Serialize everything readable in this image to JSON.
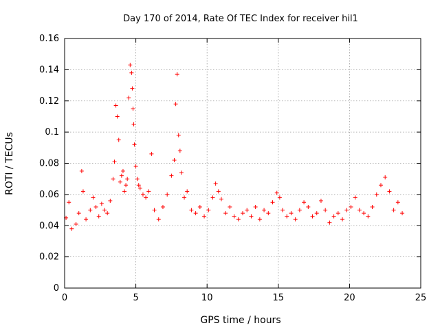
{
  "chart_data": {
    "type": "scatter",
    "title": "Day 170 of 2014, Rate Of TEC Index for receiver hil1",
    "xlabel": "GPS time / hours",
    "ylabel": "ROTI / TECUs",
    "xlim": [
      0,
      25
    ],
    "ylim": [
      0,
      0.16
    ],
    "xticks": [
      0,
      5,
      10,
      15,
      20,
      25
    ],
    "xtick_labels": [
      "0",
      "5",
      "10",
      "15",
      "20",
      "25"
    ],
    "yticks": [
      0,
      0.02,
      0.04,
      0.06,
      0.08,
      0.1,
      0.12,
      0.14,
      0.16
    ],
    "ytick_labels": [
      "0",
      "0.02",
      "0.04",
      "0.06",
      "0.08",
      "0.1",
      "0.12",
      "0.14",
      "0.16"
    ],
    "grid": true,
    "marker": "+",
    "color": "#ff0000",
    "series": [
      {
        "name": "ROTI",
        "x": [
          0.1,
          0.3,
          0.5,
          0.8,
          1.0,
          1.2,
          1.3,
          1.5,
          1.8,
          2.0,
          2.2,
          2.4,
          2.6,
          2.8,
          3.0,
          3.2,
          3.4,
          3.5,
          3.6,
          3.7,
          3.8,
          3.9,
          4.0,
          4.1,
          4.2,
          4.3,
          4.4,
          4.5,
          4.6,
          4.7,
          4.75,
          4.8,
          4.85,
          4.9,
          5.0,
          5.1,
          5.2,
          5.3,
          5.5,
          5.7,
          5.9,
          6.1,
          6.3,
          6.6,
          6.9,
          7.2,
          7.5,
          7.7,
          7.8,
          7.9,
          8.0,
          8.1,
          8.2,
          8.4,
          8.6,
          8.9,
          9.2,
          9.5,
          9.8,
          10.1,
          10.4,
          10.6,
          10.8,
          11.0,
          11.3,
          11.6,
          11.9,
          12.2,
          12.5,
          12.8,
          13.1,
          13.4,
          13.7,
          14.0,
          14.3,
          14.6,
          14.9,
          15.1,
          15.3,
          15.6,
          15.9,
          16.2,
          16.5,
          16.8,
          17.1,
          17.4,
          17.7,
          18.0,
          18.3,
          18.6,
          18.9,
          19.2,
          19.5,
          19.8,
          20.1,
          20.4,
          20.7,
          21.0,
          21.3,
          21.6,
          21.9,
          22.2,
          22.5,
          22.8,
          23.1,
          23.4,
          23.7
        ],
        "y": [
          0.045,
          0.055,
          0.038,
          0.041,
          0.048,
          0.075,
          0.062,
          0.044,
          0.05,
          0.058,
          0.052,
          0.046,
          0.054,
          0.05,
          0.048,
          0.056,
          0.07,
          0.081,
          0.117,
          0.11,
          0.095,
          0.068,
          0.072,
          0.075,
          0.062,
          0.066,
          0.07,
          0.122,
          0.143,
          0.138,
          0.128,
          0.115,
          0.105,
          0.092,
          0.078,
          0.07,
          0.066,
          0.064,
          0.06,
          0.058,
          0.062,
          0.086,
          0.05,
          0.044,
          0.052,
          0.06,
          0.072,
          0.082,
          0.118,
          0.137,
          0.098,
          0.088,
          0.074,
          0.058,
          0.062,
          0.05,
          0.048,
          0.052,
          0.046,
          0.05,
          0.058,
          0.067,
          0.062,
          0.057,
          0.048,
          0.052,
          0.046,
          0.044,
          0.048,
          0.05,
          0.046,
          0.052,
          0.044,
          0.05,
          0.048,
          0.055,
          0.061,
          0.058,
          0.05,
          0.046,
          0.048,
          0.044,
          0.05,
          0.055,
          0.052,
          0.046,
          0.048,
          0.056,
          0.05,
          0.042,
          0.046,
          0.048,
          0.044,
          0.05,
          0.052,
          0.058,
          0.05,
          0.048,
          0.046,
          0.052,
          0.06,
          0.066,
          0.071,
          0.062,
          0.05,
          0.055,
          0.048
        ]
      }
    ]
  }
}
